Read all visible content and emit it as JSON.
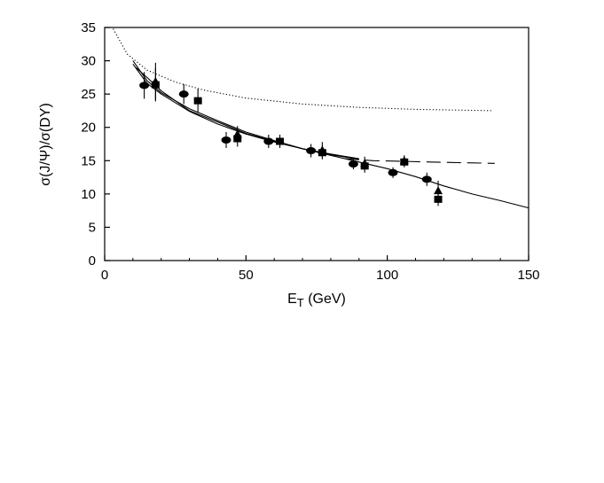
{
  "chart_data": {
    "type": "scatter",
    "title": "",
    "xlabel": "E",
    "xlabel_sub": "T",
    "xlabel_unit": " (GeV)",
    "ylabel": "σ(J/Ψ)/σ(DY)",
    "xlim": [
      0,
      150
    ],
    "ylim": [
      0,
      35
    ],
    "x_ticks": [
      0,
      50,
      100,
      150
    ],
    "y_ticks": [
      0,
      5,
      10,
      15,
      20,
      25,
      30,
      35
    ],
    "grid": false,
    "series": [
      {
        "marker": "circle",
        "points": [
          {
            "x": 14,
            "y": 26.3,
            "err": 2.0
          },
          {
            "x": 28,
            "y": 25.0,
            "err": 1.5
          },
          {
            "x": 43,
            "y": 18.1,
            "err": 1.2
          },
          {
            "x": 58,
            "y": 17.9,
            "err": 1.0
          },
          {
            "x": 73,
            "y": 16.5,
            "err": 1.0
          },
          {
            "x": 88,
            "y": 14.5,
            "err": 0.8
          },
          {
            "x": 102,
            "y": 13.2,
            "err": 0.8
          },
          {
            "x": 114,
            "y": 12.2,
            "err": 1.0
          }
        ]
      },
      {
        "marker": "square",
        "points": [
          {
            "x": 18,
            "y": 26.4,
            "err": 2.5
          },
          {
            "x": 33,
            "y": 24.0,
            "err": 1.8
          },
          {
            "x": 47,
            "y": 18.3,
            "err": 1.2
          },
          {
            "x": 62,
            "y": 17.9,
            "err": 1.0
          },
          {
            "x": 77,
            "y": 16.2,
            "err": 1.0
          },
          {
            "x": 92,
            "y": 14.2,
            "err": 1.0
          },
          {
            "x": 106,
            "y": 14.8,
            "err": 0.8
          },
          {
            "x": 118,
            "y": 9.2,
            "err": 1.0
          }
        ]
      },
      {
        "marker": "triangle",
        "points": [
          {
            "x": 18,
            "y": 26.9,
            "err": 2.8
          },
          {
            "x": 47,
            "y": 19.0,
            "err": 1.2
          },
          {
            "x": 77,
            "y": 16.6,
            "err": 1.2
          },
          {
            "x": 92,
            "y": 14.6,
            "err": 1.0
          },
          {
            "x": 106,
            "y": 15.0,
            "err": 0.8
          },
          {
            "x": 118,
            "y": 10.5,
            "err": 1.5
          }
        ]
      }
    ],
    "curves": [
      {
        "style": "dotted",
        "points": [
          [
            3,
            34.8
          ],
          [
            8,
            31.0
          ],
          [
            15,
            28.6
          ],
          [
            25,
            26.8
          ],
          [
            35,
            25.6
          ],
          [
            50,
            24.4
          ],
          [
            70,
            23.5
          ],
          [
            90,
            23.0
          ],
          [
            110,
            22.7
          ],
          [
            137,
            22.5
          ]
        ]
      },
      {
        "style": "solid",
        "points": [
          [
            10,
            30.0
          ],
          [
            15,
            27.0
          ],
          [
            20,
            25.2
          ],
          [
            30,
            22.8
          ],
          [
            40,
            21.0
          ],
          [
            50,
            19.3
          ],
          [
            60,
            18.0
          ],
          [
            70,
            16.8
          ],
          [
            80,
            15.8
          ],
          [
            90,
            14.8
          ],
          [
            100,
            13.8
          ],
          [
            110,
            12.6
          ],
          [
            120,
            11.2
          ],
          [
            130,
            10.0
          ],
          [
            140,
            9.0
          ],
          [
            150,
            7.9
          ]
        ]
      },
      {
        "style": "solid",
        "points": [
          [
            11,
            29.0
          ],
          [
            15,
            27.5
          ],
          [
            20,
            25.5
          ],
          [
            30,
            22.5
          ],
          [
            40,
            20.8
          ],
          [
            50,
            19.1
          ],
          [
            60,
            17.9
          ],
          [
            70,
            16.8
          ],
          [
            80,
            15.9
          ],
          [
            90,
            15.2
          ]
        ]
      },
      {
        "style": "solid",
        "points": [
          [
            10,
            29.5
          ],
          [
            15,
            26.6
          ],
          [
            20,
            25.0
          ],
          [
            30,
            22.4
          ],
          [
            40,
            20.5
          ],
          [
            50,
            19.0
          ],
          [
            60,
            17.8
          ],
          [
            70,
            16.8
          ],
          [
            80,
            16.0
          ],
          [
            90,
            15.3
          ]
        ]
      },
      {
        "style": "dashed",
        "points": [
          [
            85,
            15.3
          ],
          [
            95,
            15.0
          ],
          [
            105,
            14.9
          ],
          [
            115,
            14.8
          ],
          [
            125,
            14.7
          ],
          [
            138,
            14.6
          ]
        ]
      }
    ]
  }
}
